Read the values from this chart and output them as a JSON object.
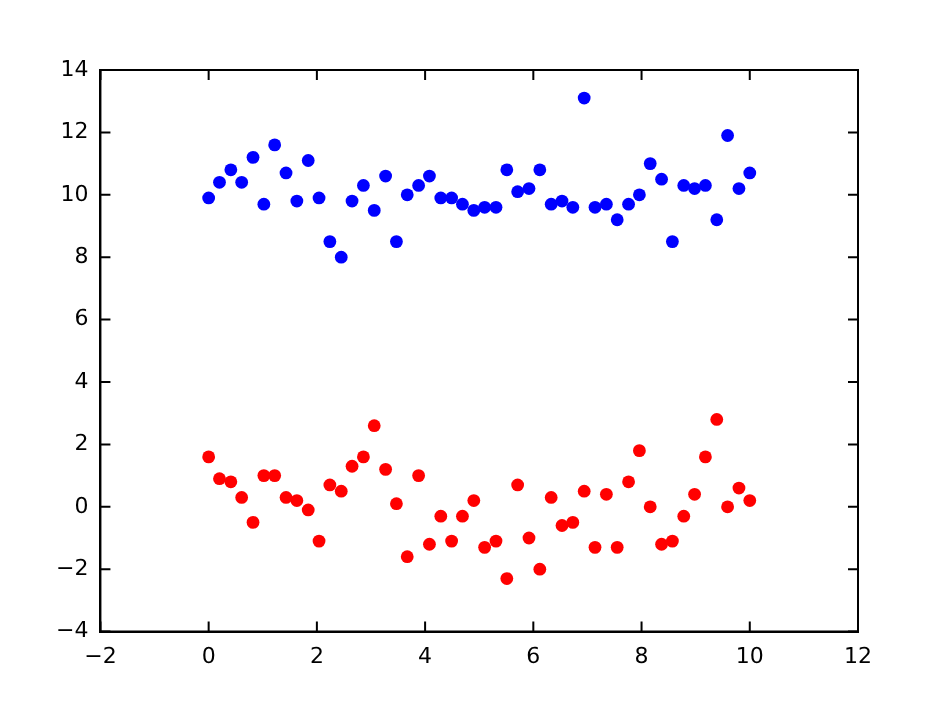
{
  "chart_data": {
    "type": "scatter",
    "x": [
      0,
      0.2,
      0.41,
      0.61,
      0.82,
      1.02,
      1.22,
      1.43,
      1.63,
      1.84,
      2.04,
      2.24,
      2.45,
      2.65,
      2.86,
      3.06,
      3.27,
      3.47,
      3.67,
      3.88,
      4.08,
      4.29,
      4.49,
      4.69,
      4.9,
      5.1,
      5.31,
      5.51,
      5.71,
      5.92,
      6.12,
      6.33,
      6.53,
      6.73,
      6.94,
      7.14,
      7.35,
      7.55,
      7.76,
      7.96,
      8.16,
      8.37,
      8.57,
      8.78,
      8.98,
      9.18,
      9.39,
      9.59,
      9.8,
      10
    ],
    "series": [
      {
        "color": "#0000ff",
        "values": [
          9.9,
          10.4,
          10.8,
          10.4,
          11.2,
          9.7,
          11.6,
          10.7,
          9.8,
          11.1,
          9.9,
          8.5,
          8.0,
          9.8,
          10.3,
          9.5,
          10.6,
          8.5,
          10.0,
          10.3,
          10.6,
          9.9,
          9.9,
          9.7,
          9.5,
          9.6,
          9.6,
          10.8,
          10.1,
          10.2,
          10.8,
          9.7,
          9.8,
          9.6,
          13.1,
          9.6,
          9.7,
          9.2,
          9.7,
          10.0,
          11.0,
          10.5,
          8.5,
          10.3,
          10.2,
          10.3,
          9.2,
          11.9,
          10.2,
          10.7
        ]
      },
      {
        "color": "#ff0000",
        "values": [
          1.6,
          0.9,
          0.8,
          0.3,
          -0.5,
          1.0,
          1.0,
          0.3,
          0.2,
          -0.1,
          -1.1,
          0.7,
          0.5,
          1.3,
          1.6,
          2.6,
          1.2,
          0.1,
          -1.6,
          1.0,
          -1.2,
          -0.3,
          -1.1,
          -0.3,
          0.2,
          -1.3,
          -1.1,
          -2.3,
          0.7,
          -1.0,
          -2.0,
          0.3,
          -0.6,
          -0.5,
          0.5,
          -1.3,
          0.4,
          -1.3,
          0.8,
          1.8,
          0.0,
          -1.2,
          -1.1,
          -0.3,
          0.4,
          1.6,
          2.8,
          0.0,
          0.6,
          0.2
        ]
      }
    ],
    "xlim": [
      -2,
      12
    ],
    "xticks": [
      -2,
      0,
      2,
      4,
      6,
      8,
      10,
      12
    ],
    "ylim": [
      -4,
      14
    ],
    "yticks": [
      -4,
      -2,
      0,
      2,
      4,
      6,
      8,
      10,
      12,
      14
    ],
    "marker": "circle",
    "grid": false,
    "legend": false
  }
}
